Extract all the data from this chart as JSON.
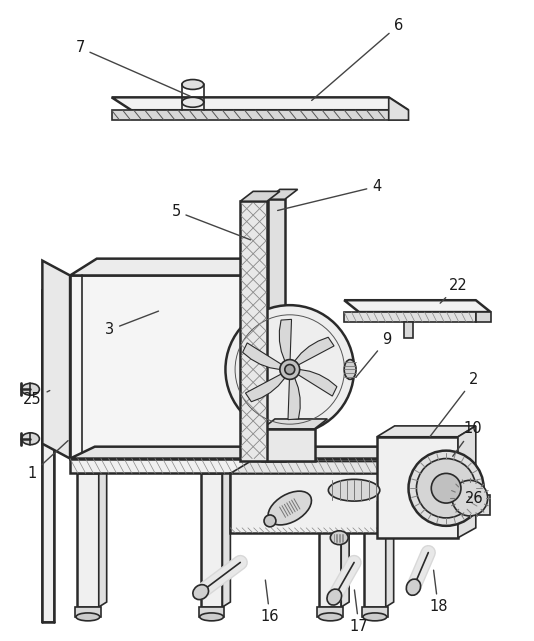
{
  "background_color": "#ffffff",
  "line_color": "#2a2a2a",
  "label_color": "#1a1a1a",
  "figsize": [
    5.34,
    6.41
  ],
  "dpi": 100
}
